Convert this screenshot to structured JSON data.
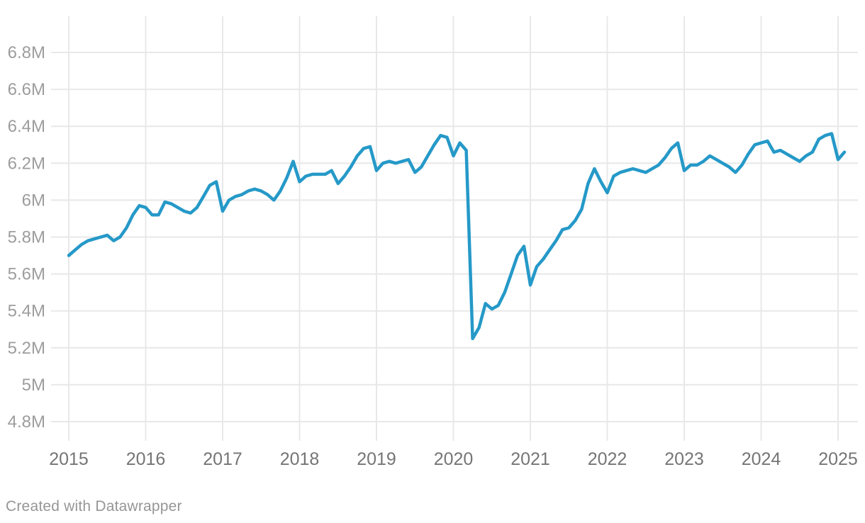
{
  "footer": {
    "credit": "Created with Datawrapper"
  },
  "colors": {
    "line": "#2599c8",
    "grid": "#e8e8e8",
    "y_label": "#9d9d9d",
    "x_label": "#757575",
    "background": "#ffffff",
    "footer_text": "#969696"
  },
  "chart_data": {
    "type": "line",
    "title": "",
    "xlabel": "",
    "ylabel": "",
    "unit": "M",
    "frequency": "monthly",
    "x_start": "2015-01",
    "x_end": "2025-02",
    "grid": true,
    "legend_position": "none",
    "ylim": [
      4.8,
      7.0
    ],
    "xlim": [
      2015.0,
      2025.25
    ],
    "yticks": [
      "6.8M",
      "6.6M",
      "6.4M",
      "6.2M",
      "6M",
      "5.8M",
      "5.6M",
      "5.4M",
      "5.2M",
      "5M",
      "4.8M"
    ],
    "ytick_values": [
      6.8,
      6.6,
      6.4,
      6.2,
      6.0,
      5.8,
      5.6,
      5.4,
      5.2,
      5.0,
      4.8
    ],
    "xticks": [
      "2015",
      "2016",
      "2017",
      "2018",
      "2019",
      "2020",
      "2021",
      "2022",
      "2023",
      "2024",
      "2025"
    ],
    "xtick_values": [
      2015,
      2016,
      2017,
      2018,
      2019,
      2020,
      2021,
      2022,
      2023,
      2024,
      2025
    ],
    "series": [
      {
        "name": "value",
        "values_millions": [
          5.7,
          5.73,
          5.76,
          5.78,
          5.79,
          5.8,
          5.81,
          5.78,
          5.8,
          5.85,
          5.92,
          5.97,
          5.96,
          5.92,
          5.92,
          5.99,
          5.98,
          5.96,
          5.94,
          5.93,
          5.96,
          6.02,
          6.08,
          6.1,
          5.94,
          6.0,
          6.02,
          6.03,
          6.05,
          6.06,
          6.05,
          6.03,
          6.0,
          6.05,
          6.12,
          6.21,
          6.1,
          6.13,
          6.14,
          6.14,
          6.14,
          6.16,
          6.09,
          6.13,
          6.18,
          6.24,
          6.28,
          6.29,
          6.16,
          6.2,
          6.21,
          6.2,
          6.21,
          6.22,
          6.15,
          6.18,
          6.24,
          6.3,
          6.35,
          6.34,
          6.24,
          6.31,
          6.27,
          5.25,
          5.31,
          5.44,
          5.41,
          5.43,
          5.5,
          5.6,
          5.7,
          5.75,
          5.54,
          5.64,
          5.68,
          5.73,
          5.78,
          5.84,
          5.85,
          5.89,
          5.95,
          6.09,
          6.17,
          6.1,
          6.04,
          6.13,
          6.15,
          6.16,
          6.17,
          6.16,
          6.15,
          6.17,
          6.19,
          6.23,
          6.28,
          6.31,
          6.16,
          6.19,
          6.19,
          6.21,
          6.24,
          6.22,
          6.2,
          6.18,
          6.15,
          6.19,
          6.25,
          6.3,
          6.31,
          6.32,
          6.26,
          6.27,
          6.25,
          6.23,
          6.21,
          6.24,
          6.26,
          6.33,
          6.35,
          6.36,
          6.22,
          6.26
        ]
      }
    ]
  }
}
